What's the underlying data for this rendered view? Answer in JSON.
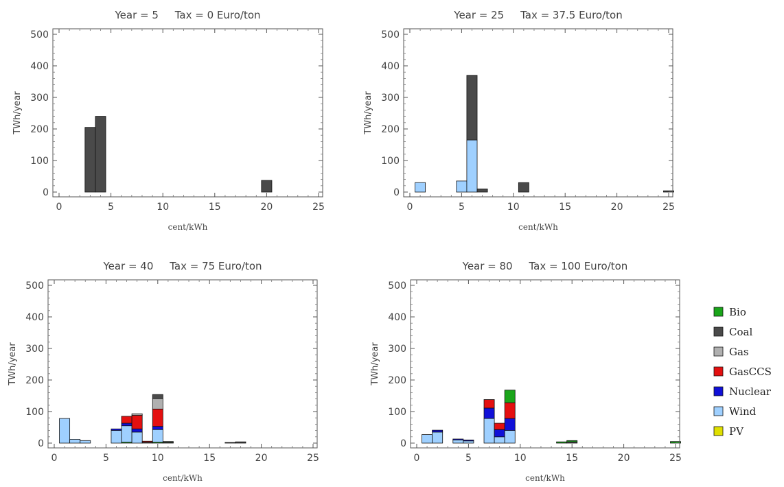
{
  "colors": {
    "Bio": "#1aa51a",
    "Coal": "#4a4a4a",
    "Gas": "#b0b0b0",
    "GasCCS": "#e41010",
    "Nuclear": "#1010d8",
    "Wind": "#9fd0ff",
    "PV": "#e0e000"
  },
  "legend": [
    "Bio",
    "Coal",
    "Gas",
    "GasCCS",
    "Nuclear",
    "Wind",
    "PV"
  ],
  "chart_data": [
    {
      "type": "bar",
      "stacked": true,
      "title": "Year = 5     Tax = 0 Euro/ton",
      "xlabel": "cent/kWh",
      "ylabel": "TWh/year",
      "xlim": [
        0,
        25
      ],
      "ylim": [
        0,
        500
      ],
      "xticks": [
        0,
        5,
        10,
        15,
        20,
        25
      ],
      "yticks": [
        0,
        100,
        200,
        300,
        400,
        500
      ],
      "bars": [
        {
          "x0": 2.5,
          "x1": 3.5,
          "segments": [
            {
              "source": "Coal",
              "value": 205
            }
          ]
        },
        {
          "x0": 3.5,
          "x1": 4.5,
          "segments": [
            {
              "source": "Coal",
              "value": 240
            }
          ]
        },
        {
          "x0": 19.5,
          "x1": 20.5,
          "segments": [
            {
              "source": "Coal",
              "value": 37
            }
          ]
        }
      ]
    },
    {
      "type": "bar",
      "stacked": true,
      "title": "Year = 25     Tax = 37.5 Euro/ton",
      "xlabel": "cent/kWh",
      "ylabel": "TWh/year",
      "xlim": [
        0,
        25
      ],
      "ylim": [
        0,
        500
      ],
      "xticks": [
        0,
        5,
        10,
        15,
        20,
        25
      ],
      "yticks": [
        0,
        100,
        200,
        300,
        400,
        500
      ],
      "bars": [
        {
          "x0": 0.5,
          "x1": 1.5,
          "segments": [
            {
              "source": "Wind",
              "value": 30
            }
          ]
        },
        {
          "x0": 4.5,
          "x1": 5.5,
          "segments": [
            {
              "source": "Wind",
              "value": 35
            }
          ]
        },
        {
          "x0": 5.5,
          "x1": 6.5,
          "segments": [
            {
              "source": "Wind",
              "value": 165
            },
            {
              "source": "Coal",
              "value": 205
            }
          ]
        },
        {
          "x0": 6.5,
          "x1": 7.5,
          "segments": [
            {
              "source": "Coal",
              "value": 10
            }
          ]
        },
        {
          "x0": 10.5,
          "x1": 11.5,
          "segments": [
            {
              "source": "Coal",
              "value": 30
            }
          ]
        },
        {
          "x0": 24.5,
          "x1": 25.5,
          "segments": [
            {
              "source": "Coal",
              "value": 4
            }
          ]
        }
      ]
    },
    {
      "type": "bar",
      "stacked": true,
      "title": "Year = 40     Tax = 75 Euro/ton",
      "xlabel": "cent/kWh",
      "ylabel": "TWh/year",
      "xlim": [
        0,
        25
      ],
      "ylim": [
        0,
        500
      ],
      "xticks": [
        0,
        5,
        10,
        15,
        20,
        25
      ],
      "yticks": [
        0,
        100,
        200,
        300,
        400,
        500
      ],
      "bars": [
        {
          "x0": 0.5,
          "x1": 1.5,
          "segments": [
            {
              "source": "Wind",
              "value": 78
            }
          ]
        },
        {
          "x0": 1.5,
          "x1": 2.5,
          "segments": [
            {
              "source": "Wind",
              "value": 12
            }
          ]
        },
        {
          "x0": 2.5,
          "x1": 3.5,
          "segments": [
            {
              "source": "Wind",
              "value": 8
            }
          ]
        },
        {
          "x0": 5.5,
          "x1": 6.5,
          "segments": [
            {
              "source": "Wind",
              "value": 40
            },
            {
              "source": "Nuclear",
              "value": 5
            }
          ]
        },
        {
          "x0": 6.5,
          "x1": 7.5,
          "segments": [
            {
              "source": "Bio",
              "value": 3
            },
            {
              "source": "Wind",
              "value": 52
            },
            {
              "source": "Nuclear",
              "value": 8
            },
            {
              "source": "GasCCS",
              "value": 22
            }
          ]
        },
        {
          "x0": 7.5,
          "x1": 8.5,
          "segments": [
            {
              "source": "Wind",
              "value": 35
            },
            {
              "source": "Nuclear",
              "value": 10
            },
            {
              "source": "GasCCS",
              "value": 43
            },
            {
              "source": "Gas",
              "value": 5
            }
          ]
        },
        {
          "x0": 8.5,
          "x1": 9.5,
          "segments": [
            {
              "source": "Coal",
              "value": 3
            },
            {
              "source": "GasCCS",
              "value": 3
            }
          ]
        },
        {
          "x0": 9.5,
          "x1": 10.5,
          "segments": [
            {
              "source": "Bio",
              "value": 3
            },
            {
              "source": "Wind",
              "value": 40
            },
            {
              "source": "Nuclear",
              "value": 10
            },
            {
              "source": "GasCCS",
              "value": 55
            },
            {
              "source": "Gas",
              "value": 33
            },
            {
              "source": "Coal",
              "value": 13
            }
          ]
        },
        {
          "x0": 10.5,
          "x1": 11.5,
          "segments": [
            {
              "source": "Coal",
              "value": 3
            },
            {
              "source": "Bio",
              "value": 2
            }
          ]
        },
        {
          "x0": 16.5,
          "x1": 17.5,
          "segments": [
            {
              "source": "Coal",
              "value": 2
            }
          ]
        },
        {
          "x0": 17.5,
          "x1": 18.5,
          "segments": [
            {
              "source": "Coal",
              "value": 4
            }
          ]
        }
      ]
    },
    {
      "type": "bar",
      "stacked": true,
      "title": "Year = 80     Tax = 100 Euro/ton",
      "xlabel": "cent/kWh",
      "ylabel": "TWh/year",
      "xlim": [
        0,
        25
      ],
      "ylim": [
        0,
        500
      ],
      "xticks": [
        0,
        5,
        10,
        15,
        20,
        25
      ],
      "yticks": [
        0,
        100,
        200,
        300,
        400,
        500
      ],
      "bars": [
        {
          "x0": 0.5,
          "x1": 1.5,
          "segments": [
            {
              "source": "Wind",
              "value": 27
            }
          ]
        },
        {
          "x0": 1.5,
          "x1": 2.5,
          "segments": [
            {
              "source": "Wind",
              "value": 35
            },
            {
              "source": "Nuclear",
              "value": 6
            }
          ]
        },
        {
          "x0": 3.5,
          "x1": 4.5,
          "segments": [
            {
              "source": "Wind",
              "value": 10
            },
            {
              "source": "Nuclear",
              "value": 3
            }
          ]
        },
        {
          "x0": 4.5,
          "x1": 5.5,
          "segments": [
            {
              "source": "Wind",
              "value": 7
            },
            {
              "source": "Nuclear",
              "value": 3
            }
          ]
        },
        {
          "x0": 6.5,
          "x1": 7.5,
          "segments": [
            {
              "source": "Wind",
              "value": 78
            },
            {
              "source": "Nuclear",
              "value": 33
            },
            {
              "source": "GasCCS",
              "value": 27
            }
          ]
        },
        {
          "x0": 7.5,
          "x1": 8.5,
          "segments": [
            {
              "source": "Wind",
              "value": 20
            },
            {
              "source": "Nuclear",
              "value": 23
            },
            {
              "source": "GasCCS",
              "value": 20
            }
          ]
        },
        {
          "x0": 8.5,
          "x1": 9.5,
          "segments": [
            {
              "source": "Wind",
              "value": 40
            },
            {
              "source": "Nuclear",
              "value": 38
            },
            {
              "source": "GasCCS",
              "value": 50
            },
            {
              "source": "Bio",
              "value": 40
            }
          ]
        },
        {
          "x0": 13.5,
          "x1": 14.5,
          "segments": [
            {
              "source": "Bio",
              "value": 4
            }
          ]
        },
        {
          "x0": 14.5,
          "x1": 15.5,
          "segments": [
            {
              "source": "Coal",
              "value": 4
            },
            {
              "source": "Bio",
              "value": 4
            }
          ]
        },
        {
          "x0": 24.5,
          "x1": 25.5,
          "segments": [
            {
              "source": "Bio",
              "value": 5
            }
          ]
        }
      ]
    }
  ]
}
